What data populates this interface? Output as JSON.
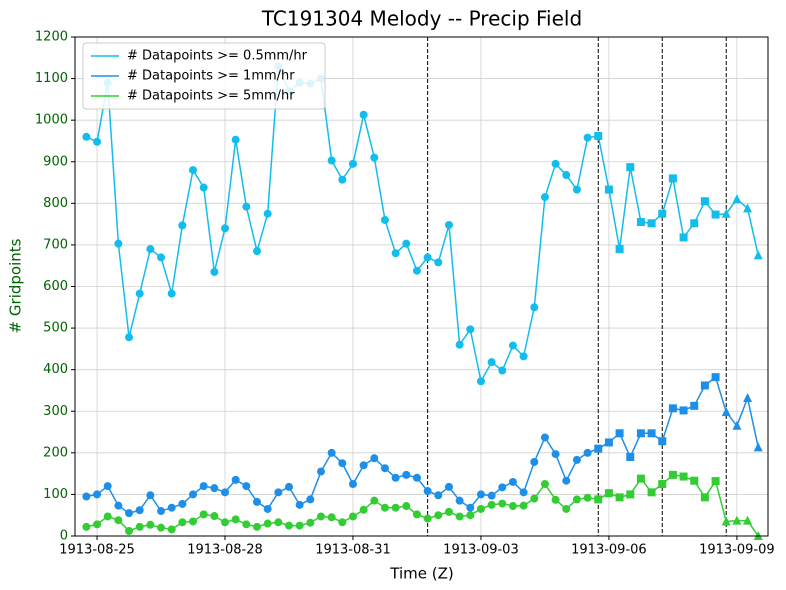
{
  "chart_data": {
    "type": "line",
    "title": "TC191304 Melody -- Precip Field",
    "xlabel": "Time (Z)",
    "ylabel": "# Gridpoints",
    "x": [
      "1913-08-24 18:00",
      "1913-08-25 00:00",
      "1913-08-25 06:00",
      "1913-08-25 12:00",
      "1913-08-25 18:00",
      "1913-08-26 00:00",
      "1913-08-26 06:00",
      "1913-08-26 12:00",
      "1913-08-26 18:00",
      "1913-08-27 00:00",
      "1913-08-27 06:00",
      "1913-08-27 12:00",
      "1913-08-27 18:00",
      "1913-08-28 00:00",
      "1913-08-28 06:00",
      "1913-08-28 12:00",
      "1913-08-28 18:00",
      "1913-08-29 00:00",
      "1913-08-29 06:00",
      "1913-08-29 12:00",
      "1913-08-29 18:00",
      "1913-08-30 00:00",
      "1913-08-30 06:00",
      "1913-08-30 12:00",
      "1913-08-30 18:00",
      "1913-08-31 00:00",
      "1913-08-31 06:00",
      "1913-08-31 12:00",
      "1913-08-31 18:00",
      "1913-09-01 00:00",
      "1913-09-01 06:00",
      "1913-09-01 12:00",
      "1913-09-01 18:00",
      "1913-09-02 00:00",
      "1913-09-02 06:00",
      "1913-09-02 12:00",
      "1913-09-02 18:00",
      "1913-09-03 00:00",
      "1913-09-03 06:00",
      "1913-09-03 12:00",
      "1913-09-03 18:00",
      "1913-09-04 00:00",
      "1913-09-04 06:00",
      "1913-09-04 12:00",
      "1913-09-04 18:00",
      "1913-09-05 00:00",
      "1913-09-05 06:00",
      "1913-09-05 12:00",
      "1913-09-05 18:00",
      "1913-09-06 00:00",
      "1913-09-06 06:00",
      "1913-09-06 12:00",
      "1913-09-06 18:00",
      "1913-09-07 00:00",
      "1913-09-07 06:00",
      "1913-09-07 12:00",
      "1913-09-07 18:00",
      "1913-09-08 00:00",
      "1913-09-08 06:00",
      "1913-09-08 12:00",
      "1913-09-08 18:00",
      "1913-09-09 00:00",
      "1913-09-09 06:00",
      "1913-09-09 12:00"
    ],
    "series": [
      {
        "name": "# Datapoints >= 0.5mm/hr",
        "color": "#12bdec",
        "values": [
          960,
          948,
          1090,
          703,
          478,
          583,
          690,
          670,
          583,
          747,
          880,
          838,
          635,
          740,
          953,
          792,
          685,
          775,
          1130,
          1070,
          1090,
          1088,
          1100,
          903,
          857,
          895,
          1013,
          910,
          760,
          680,
          703,
          638,
          670,
          658,
          748,
          460,
          497,
          372,
          418,
          398,
          458,
          432,
          550,
          815,
          895,
          868,
          833,
          958,
          962,
          833,
          690,
          887,
          755,
          752,
          775,
          860,
          718,
          752,
          805,
          773,
          775,
          810,
          788,
          675
        ]
      },
      {
        "name": "# Datapoints >= 1mm/hr",
        "color": "#1e8fe8",
        "values": [
          95,
          100,
          120,
          73,
          55,
          62,
          98,
          60,
          68,
          77,
          100,
          120,
          115,
          105,
          135,
          120,
          82,
          65,
          105,
          118,
          75,
          88,
          155,
          200,
          175,
          125,
          170,
          187,
          163,
          140,
          147,
          140,
          108,
          98,
          118,
          85,
          68,
          100,
          97,
          117,
          130,
          105,
          178,
          237,
          197,
          133,
          183,
          200,
          210,
          225,
          247,
          190,
          247,
          247,
          228,
          307,
          302,
          313,
          362,
          382,
          298,
          265,
          332,
          213
        ]
      },
      {
        "name": "# Datapoints >= 5mm/hr",
        "color": "#32cd32",
        "values": [
          22,
          28,
          47,
          38,
          12,
          22,
          27,
          20,
          16,
          33,
          35,
          52,
          48,
          33,
          40,
          28,
          22,
          30,
          33,
          25,
          25,
          32,
          47,
          45,
          33,
          47,
          63,
          85,
          68,
          68,
          72,
          52,
          42,
          50,
          58,
          47,
          50,
          65,
          75,
          78,
          72,
          73,
          90,
          125,
          87,
          65,
          88,
          92,
          88,
          103,
          93,
          100,
          138,
          105,
          125,
          147,
          143,
          133,
          93,
          132,
          35,
          37,
          37,
          0
        ]
      }
    ],
    "xlim": [
      "1913-08-24 11:36",
      "1913-09-09 17:30"
    ],
    "xticks": [
      {
        "value": "1913-08-25 00:00",
        "label": "1913-08-25"
      },
      {
        "value": "1913-08-28 00:00",
        "label": "1913-08-28"
      },
      {
        "value": "1913-08-31 00:00",
        "label": "1913-08-31"
      },
      {
        "value": "1913-09-03 00:00",
        "label": "1913-09-03"
      },
      {
        "value": "1913-09-06 00:00",
        "label": "1913-09-06"
      },
      {
        "value": "1913-09-09 00:00",
        "label": "1913-09-09"
      }
    ],
    "ylim": [
      0,
      1200
    ],
    "yticks": [
      0,
      100,
      200,
      300,
      400,
      500,
      600,
      700,
      800,
      900,
      1000,
      1100,
      1200
    ],
    "grid": true,
    "legend": "upper left",
    "vlines": [
      "1913-09-01 18:00",
      "1913-09-05 18:00",
      "1913-09-07 06:00",
      "1913-09-08 18:00"
    ],
    "segment_markers": [
      "circle",
      "circle",
      "square",
      "square",
      "triangle"
    ],
    "ytick_color": "#006400",
    "ylabel_color": "#006400"
  }
}
